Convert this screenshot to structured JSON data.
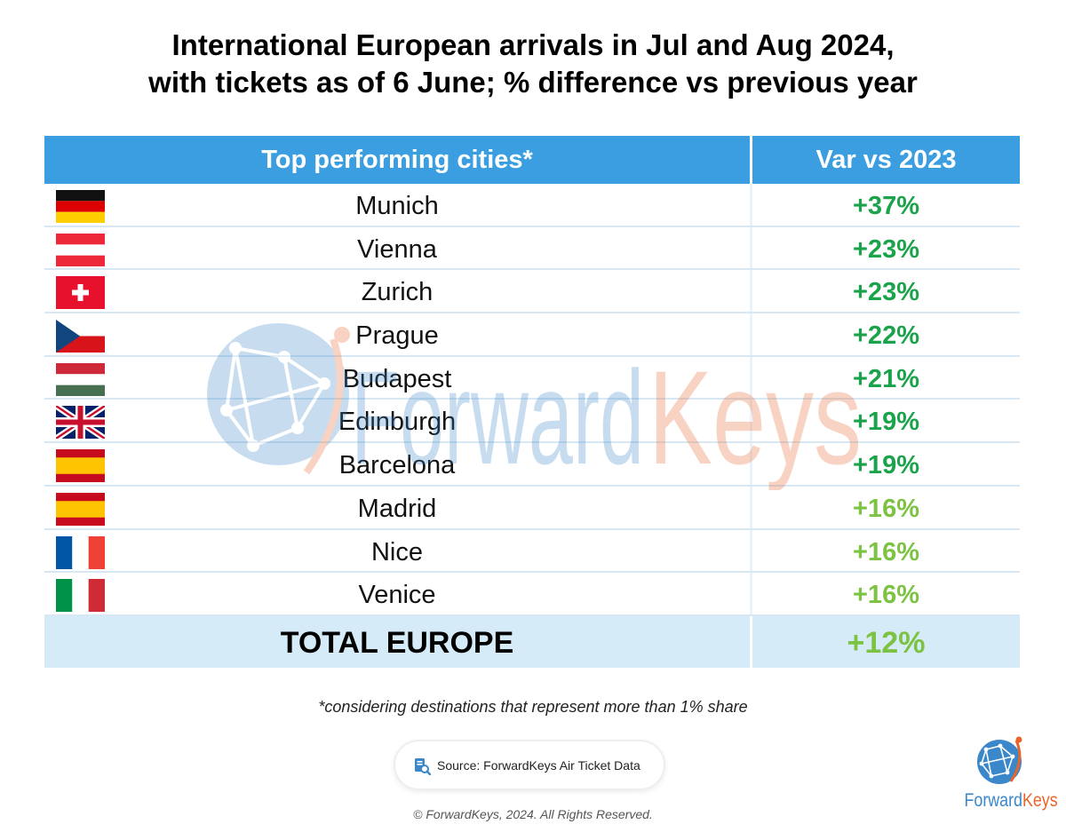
{
  "title": {
    "line1": "International European arrivals in Jul and Aug 2024,",
    "line2": "with tickets as of 6 June; % difference vs previous year"
  },
  "table": {
    "header_city": "Top performing cities*",
    "header_var": "Var vs 2023",
    "rows": [
      {
        "flag": "germany-flag",
        "city": "Munich",
        "var": "+37%",
        "color": "#1aa34a"
      },
      {
        "flag": "austria-flag",
        "city": "Vienna",
        "var": "+23%",
        "color": "#1aa34a"
      },
      {
        "flag": "switzerland-flag",
        "city": "Zurich",
        "var": "+23%",
        "color": "#1aa34a"
      },
      {
        "flag": "czech-flag",
        "city": "Prague",
        "var": "+22%",
        "color": "#1aa34a"
      },
      {
        "flag": "hungary-flag",
        "city": "Budapest",
        "var": "+21%",
        "color": "#1aa34a"
      },
      {
        "flag": "uk-flag",
        "city": "Edinburgh",
        "var": "+19%",
        "color": "#1aa34a"
      },
      {
        "flag": "spain-flag",
        "city": "Barcelona",
        "var": "+19%",
        "color": "#1aa34a"
      },
      {
        "flag": "spain-flag",
        "city": "Madrid",
        "var": "+16%",
        "color": "#7cc243"
      },
      {
        "flag": "france-flag",
        "city": "Nice",
        "var": "+16%",
        "color": "#7cc243"
      },
      {
        "flag": "italy-flag",
        "city": "Venice",
        "var": "+16%",
        "color": "#7cc243"
      }
    ],
    "total_label": "TOTAL EUROPE",
    "total_var": "+12%",
    "total_color": "#7cc243"
  },
  "chart_data": {
    "type": "table",
    "title": "International European arrivals in Jul and Aug 2024, with tickets as of 6 June; % difference vs previous year",
    "columns": [
      "Top performing cities*",
      "Var vs 2023"
    ],
    "categories": [
      "Munich",
      "Vienna",
      "Zurich",
      "Prague",
      "Budapest",
      "Edinburgh",
      "Barcelona",
      "Madrid",
      "Nice",
      "Venice",
      "TOTAL EUROPE"
    ],
    "values": [
      37,
      23,
      23,
      22,
      21,
      19,
      19,
      16,
      16,
      16,
      12
    ],
    "unit": "%"
  },
  "footnote": "*considering destinations that represent more than 1% share",
  "source": {
    "icon": "document-search-icon",
    "text": "Source: ForwardKeys Air Ticket Data"
  },
  "copyright": "© ForwardKeys, 2024. All Rights Reserved.",
  "logo": {
    "part1": "Forward",
    "part2": "Keys"
  },
  "watermark": {
    "part1": "Forward",
    "part2": "Keys"
  },
  "colors": {
    "header": "#3a9ee0",
    "total_row": "#d6ebf8",
    "brand_blue": "#3a87c9",
    "brand_orange": "#e8652a"
  }
}
